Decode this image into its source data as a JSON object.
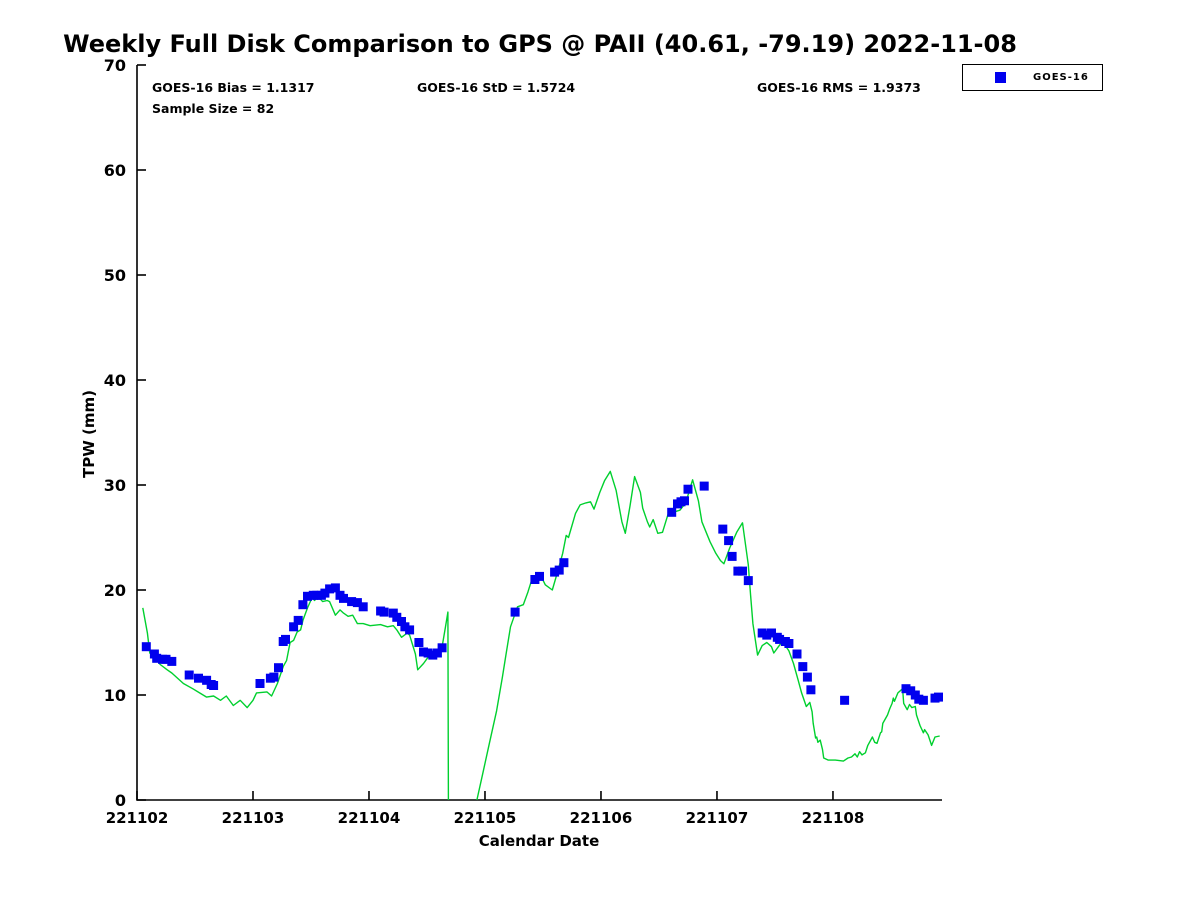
{
  "figure": {
    "stats": {
      "bias": "GOES-16 Bias = 1.1317",
      "std": "GOES-16 StD = 1.5724",
      "rms": "GOES-16 RMS = 1.9373",
      "sample_size": "Sample Size = 82"
    },
    "legend": {
      "label": "GOES-16",
      "marker_color": "#0000EE"
    }
  },
  "chart_data": {
    "type": "line",
    "title": "Weekly Full Disk Comparison to GPS @ PAII (40.61, -79.19) 2022-11-08",
    "xlabel": "Calendar Date",
    "ylabel": "TPW (mm)",
    "x_tick_labels": [
      "221102",
      "221103",
      "221104",
      "221105",
      "221106",
      "221107",
      "221108"
    ],
    "y_ticks": [
      0,
      10,
      20,
      30,
      40,
      50,
      60,
      70
    ],
    "ylim": [
      0,
      70
    ],
    "x_domain_days": [
      0,
      6.94
    ],
    "axis_color": "#000000",
    "grid": false,
    "legend_position": "top-right",
    "series": [
      {
        "name": "GPS",
        "type": "line",
        "color": "#00D02E",
        "segments": [
          [
            [
              0.05,
              18.3
            ],
            [
              0.09,
              15.9
            ],
            [
              0.11,
              14.0
            ],
            [
              0.16,
              13.5
            ],
            [
              0.2,
              12.9
            ],
            [
              0.26,
              12.4
            ],
            [
              0.3,
              12.1
            ],
            [
              0.4,
              11.1
            ],
            [
              0.48,
              10.6
            ],
            [
              0.54,
              10.2
            ],
            [
              0.6,
              9.8
            ],
            [
              0.66,
              9.9
            ],
            [
              0.72,
              9.5
            ],
            [
              0.77,
              9.9
            ],
            [
              0.83,
              9.0
            ],
            [
              0.89,
              9.5
            ],
            [
              0.95,
              8.8
            ],
            [
              1.0,
              9.5
            ],
            [
              1.03,
              10.2
            ],
            [
              1.12,
              10.3
            ],
            [
              1.16,
              9.9
            ],
            [
              1.21,
              11.1
            ],
            [
              1.26,
              12.7
            ],
            [
              1.29,
              13.3
            ],
            [
              1.32,
              15.0
            ],
            [
              1.35,
              15.2
            ],
            [
              1.38,
              16.0
            ],
            [
              1.41,
              16.2
            ],
            [
              1.43,
              17.1
            ],
            [
              1.47,
              18.3
            ],
            [
              1.51,
              19.3
            ],
            [
              1.53,
              19.0
            ],
            [
              1.56,
              19.4
            ],
            [
              1.6,
              18.9
            ],
            [
              1.64,
              19.0
            ],
            [
              1.66,
              18.9
            ],
            [
              1.71,
              17.6
            ],
            [
              1.75,
              18.1
            ],
            [
              1.78,
              17.8
            ],
            [
              1.82,
              17.5
            ],
            [
              1.86,
              17.6
            ],
            [
              1.9,
              16.8
            ],
            [
              1.95,
              16.8
            ],
            [
              2.01,
              16.6
            ],
            [
              2.1,
              16.7
            ],
            [
              2.16,
              16.5
            ],
            [
              2.21,
              16.6
            ],
            [
              2.24,
              16.2
            ],
            [
              2.28,
              15.5
            ],
            [
              2.33,
              15.9
            ],
            [
              2.35,
              15.7
            ],
            [
              2.4,
              13.9
            ],
            [
              2.42,
              12.4
            ],
            [
              2.47,
              13.0
            ],
            [
              2.51,
              13.6
            ],
            [
              2.54,
              13.8
            ],
            [
              2.59,
              14.1
            ],
            [
              2.63,
              14.6
            ],
            [
              2.66,
              16.5
            ],
            [
              2.68,
              17.9
            ],
            [
              2.685,
              0
            ]
          ],
          [
            [
              2.93,
              0
            ],
            [
              2.98,
              2.5
            ],
            [
              3.04,
              5.5
            ],
            [
              3.1,
              8.5
            ],
            [
              3.15,
              11.7
            ],
            [
              3.18,
              13.8
            ],
            [
              3.22,
              16.5
            ],
            [
              3.28,
              18.4
            ],
            [
              3.33,
              18.6
            ],
            [
              3.37,
              19.8
            ],
            [
              3.41,
              21.2
            ],
            [
              3.47,
              21.6
            ],
            [
              3.52,
              20.5
            ],
            [
              3.58,
              20.0
            ],
            [
              3.63,
              21.9
            ],
            [
              3.67,
              23.5
            ],
            [
              3.7,
              25.2
            ],
            [
              3.72,
              25.0
            ],
            [
              3.78,
              27.3
            ],
            [
              3.82,
              28.1
            ],
            [
              3.87,
              28.3
            ],
            [
              3.91,
              28.4
            ],
            [
              3.94,
              27.7
            ],
            [
              3.99,
              29.3
            ],
            [
              4.03,
              30.4
            ],
            [
              4.08,
              31.3
            ],
            [
              4.13,
              29.5
            ],
            [
              4.18,
              26.5
            ],
            [
              4.21,
              25.4
            ],
            [
              4.25,
              28.0
            ],
            [
              4.29,
              30.8
            ],
            [
              4.34,
              29.3
            ],
            [
              4.36,
              27.8
            ],
            [
              4.4,
              26.5
            ],
            [
              4.42,
              26.0
            ],
            [
              4.45,
              26.7
            ],
            [
              4.49,
              25.4
            ],
            [
              4.53,
              25.5
            ],
            [
              4.58,
              27.3
            ],
            [
              4.62,
              27.4
            ],
            [
              4.68,
              27.6
            ],
            [
              4.73,
              28.3
            ],
            [
              4.79,
              30.5
            ],
            [
              4.84,
              28.5
            ],
            [
              4.87,
              26.5
            ],
            [
              4.94,
              24.6
            ],
            [
              4.99,
              23.5
            ],
            [
              5.03,
              22.8
            ],
            [
              5.06,
              22.5
            ],
            [
              5.11,
              24.0
            ],
            [
              5.17,
              25.5
            ],
            [
              5.22,
              26.4
            ],
            [
              5.27,
              22.4
            ],
            [
              5.29,
              19.5
            ],
            [
              5.31,
              16.8
            ],
            [
              5.35,
              13.8
            ],
            [
              5.39,
              14.7
            ],
            [
              5.43,
              15.0
            ],
            [
              5.47,
              14.6
            ],
            [
              5.49,
              14.0
            ],
            [
              5.53,
              14.6
            ],
            [
              5.55,
              14.9
            ],
            [
              5.59,
              14.7
            ],
            [
              5.62,
              14.2
            ],
            [
              5.66,
              13.0
            ],
            [
              5.7,
              11.4
            ],
            [
              5.73,
              10.2
            ],
            [
              5.77,
              8.9
            ],
            [
              5.8,
              9.3
            ],
            [
              5.82,
              8.4
            ],
            [
              5.83,
              7.3
            ],
            [
              5.85,
              5.9
            ],
            [
              5.86,
              6.0
            ],
            [
              5.87,
              5.5
            ],
            [
              5.89,
              5.7
            ],
            [
              5.91,
              4.8
            ],
            [
              5.92,
              4.0
            ],
            [
              5.96,
              3.8
            ],
            [
              6.02,
              3.8
            ],
            [
              6.09,
              3.7
            ],
            [
              6.13,
              4.0
            ],
            [
              6.16,
              4.1
            ],
            [
              6.19,
              4.4
            ],
            [
              6.21,
              4.1
            ],
            [
              6.23,
              4.6
            ],
            [
              6.25,
              4.3
            ],
            [
              6.28,
              4.5
            ],
            [
              6.3,
              5.2
            ],
            [
              6.34,
              6.0
            ],
            [
              6.36,
              5.5
            ],
            [
              6.38,
              5.4
            ],
            [
              6.41,
              6.4
            ],
            [
              6.42,
              6.5
            ],
            [
              6.43,
              7.3
            ],
            [
              6.47,
              8.1
            ],
            [
              6.49,
              8.7
            ],
            [
              6.51,
              9.2
            ],
            [
              6.52,
              9.7
            ],
            [
              6.53,
              9.4
            ],
            [
              6.56,
              10.2
            ],
            [
              6.6,
              10.6
            ],
            [
              6.61,
              9.2
            ],
            [
              6.64,
              8.6
            ],
            [
              6.66,
              9.1
            ],
            [
              6.68,
              8.8
            ],
            [
              6.71,
              8.9
            ],
            [
              6.72,
              8.1
            ],
            [
              6.75,
              7.1
            ],
            [
              6.78,
              6.4
            ],
            [
              6.79,
              6.7
            ],
            [
              6.82,
              6.2
            ],
            [
              6.85,
              5.2
            ],
            [
              6.88,
              6.0
            ],
            [
              6.92,
              6.1
            ]
          ]
        ]
      },
      {
        "name": "GOES-16",
        "type": "scatter",
        "color": "#0000EE",
        "marker": "square",
        "marker_size": 9,
        "points": [
          [
            0.08,
            14.6
          ],
          [
            0.15,
            13.9
          ],
          [
            0.17,
            13.5
          ],
          [
            0.22,
            13.4
          ],
          [
            0.25,
            13.4
          ],
          [
            0.3,
            13.2
          ],
          [
            0.45,
            11.9
          ],
          [
            0.53,
            11.6
          ],
          [
            0.6,
            11.4
          ],
          [
            0.64,
            11.0
          ],
          [
            0.66,
            10.9
          ],
          [
            1.06,
            11.1
          ],
          [
            1.15,
            11.6
          ],
          [
            1.18,
            11.7
          ],
          [
            1.22,
            12.6
          ],
          [
            1.26,
            15.1
          ],
          [
            1.28,
            15.3
          ],
          [
            1.35,
            16.5
          ],
          [
            1.39,
            17.1
          ],
          [
            1.43,
            18.6
          ],
          [
            1.47,
            19.4
          ],
          [
            1.52,
            19.5
          ],
          [
            1.55,
            19.5
          ],
          [
            1.59,
            19.5
          ],
          [
            1.62,
            19.7
          ],
          [
            1.66,
            20.1
          ],
          [
            1.71,
            20.2
          ],
          [
            1.75,
            19.5
          ],
          [
            1.78,
            19.2
          ],
          [
            1.85,
            18.9
          ],
          [
            1.9,
            18.8
          ],
          [
            1.95,
            18.4
          ],
          [
            2.1,
            18.0
          ],
          [
            2.13,
            17.9
          ],
          [
            2.21,
            17.8
          ],
          [
            2.24,
            17.4
          ],
          [
            2.28,
            17.0
          ],
          [
            2.31,
            16.5
          ],
          [
            2.35,
            16.2
          ],
          [
            2.43,
            15.0
          ],
          [
            2.47,
            14.1
          ],
          [
            2.51,
            14.0
          ],
          [
            2.55,
            13.8
          ],
          [
            2.59,
            14.0
          ],
          [
            2.63,
            14.5
          ],
          [
            3.26,
            17.9
          ],
          [
            3.43,
            21.0
          ],
          [
            3.47,
            21.3
          ],
          [
            3.6,
            21.7
          ],
          [
            3.64,
            21.9
          ],
          [
            3.68,
            22.6
          ],
          [
            4.61,
            27.4
          ],
          [
            4.66,
            28.2
          ],
          [
            4.69,
            28.4
          ],
          [
            4.72,
            28.5
          ],
          [
            4.75,
            29.6
          ],
          [
            4.89,
            29.9
          ],
          [
            5.05,
            25.8
          ],
          [
            5.1,
            24.7
          ],
          [
            5.13,
            23.2
          ],
          [
            5.18,
            21.8
          ],
          [
            5.22,
            21.8
          ],
          [
            5.27,
            20.9
          ],
          [
            5.39,
            15.9
          ],
          [
            5.43,
            15.7
          ],
          [
            5.47,
            15.9
          ],
          [
            5.52,
            15.5
          ],
          [
            5.54,
            15.3
          ],
          [
            5.59,
            15.1
          ],
          [
            5.62,
            14.9
          ],
          [
            5.69,
            13.9
          ],
          [
            5.74,
            12.7
          ],
          [
            5.78,
            11.7
          ],
          [
            5.81,
            10.5
          ],
          [
            6.1,
            9.5
          ],
          [
            6.63,
            10.6
          ],
          [
            6.67,
            10.4
          ],
          [
            6.71,
            10.0
          ],
          [
            6.74,
            9.6
          ],
          [
            6.78,
            9.5
          ],
          [
            6.88,
            9.7
          ],
          [
            6.91,
            9.8
          ]
        ]
      }
    ]
  }
}
